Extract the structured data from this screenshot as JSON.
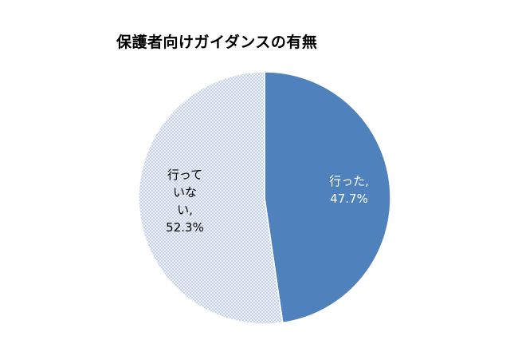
{
  "chart_data": {
    "type": "pie",
    "title": "保護者向けガイダンスの有無",
    "slices": [
      {
        "label_lines": [
          "行った,",
          "47.7%"
        ],
        "value": 47.7,
        "color": "#4f81bd",
        "label_color": "#ffffff",
        "pattern": "solid"
      },
      {
        "label_lines": [
          "行って",
          "いな",
          "い,",
          "52.3%"
        ],
        "value": 52.3,
        "color": "#dce6f2",
        "label_color": "#000000",
        "pattern": "dotted"
      }
    ]
  }
}
